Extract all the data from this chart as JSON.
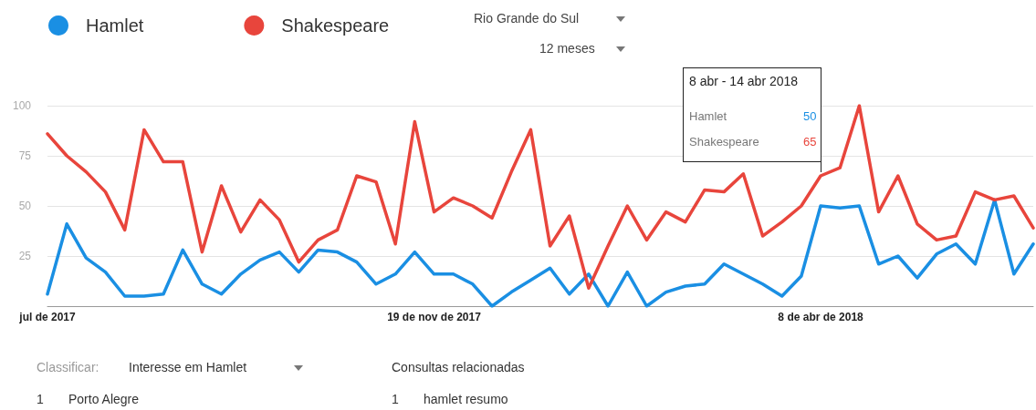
{
  "chart_data": {
    "type": "line",
    "categories": [
      "jul de 2017",
      null,
      null,
      null,
      null,
      null,
      null,
      null,
      null,
      null,
      null,
      null,
      null,
      null,
      null,
      null,
      null,
      null,
      null,
      null,
      "19 de nov de 2017",
      null,
      null,
      null,
      null,
      null,
      null,
      null,
      null,
      null,
      null,
      null,
      null,
      null,
      null,
      null,
      null,
      null,
      null,
      null,
      "8 de abr de 2018",
      null,
      null,
      null,
      null,
      null,
      null,
      null,
      null,
      null,
      null,
      null
    ],
    "series": [
      {
        "name": "Hamlet",
        "color": "#1a8fe3",
        "values": [
          6,
          41,
          24,
          17,
          5,
          5,
          6,
          28,
          11,
          6,
          16,
          23,
          27,
          17,
          28,
          27,
          22,
          11,
          16,
          27,
          16,
          16,
          11,
          0,
          7,
          13,
          19,
          6,
          16,
          0,
          17,
          0,
          7,
          10,
          11,
          21,
          16,
          11,
          5,
          15,
          50,
          49,
          50,
          21,
          25,
          14,
          26,
          31,
          21,
          53,
          16,
          31
        ]
      },
      {
        "name": "Shakespeare",
        "color": "#e8453c",
        "values": [
          86,
          75,
          67,
          57,
          38,
          88,
          72,
          72,
          27,
          60,
          37,
          53,
          43,
          22,
          33,
          38,
          65,
          62,
          31,
          92,
          47,
          54,
          50,
          44,
          67,
          88,
          30,
          45,
          9,
          30,
          50,
          33,
          47,
          42,
          58,
          57,
          66,
          35,
          42,
          50,
          65,
          69,
          100,
          47,
          65,
          41,
          33,
          35,
          57,
          53,
          55,
          39
        ]
      }
    ],
    "ylim": [
      0,
      100
    ],
    "yticks": [
      {
        "value": 0,
        "label": null
      },
      25,
      50,
      75,
      100
    ],
    "grid": "y",
    "legend": "top left",
    "marker": "none",
    "line_style": "solid",
    "annotations": [
      "Rio Grande do Sul",
      "12 meses",
      "8 abr - 14 abr 2018",
      "Hamlet",
      "50",
      "Shakespeare",
      "65",
      "Classificar:",
      "Interesse em Hamlet",
      "Consultas relacionadas",
      "1",
      "Porto Alegre",
      "1",
      "hamlet resumo"
    ]
  }
}
